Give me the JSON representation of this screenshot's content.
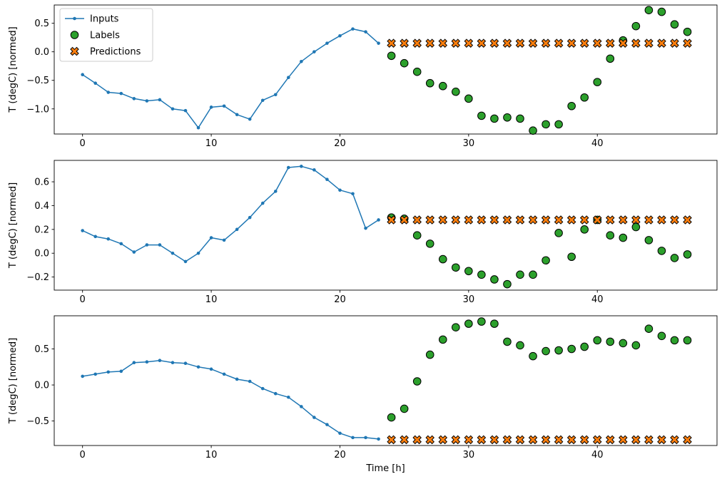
{
  "figure": {
    "xlabel": "Time [h]",
    "ylabel": "T (degC) [normed]"
  },
  "colors": {
    "inputs": "#1f77b4",
    "labels": "#2ca02c",
    "predictions": "#ff7f0e",
    "edge": "#000000",
    "spine": "#000000",
    "legend_border": "#cccccc",
    "background": "#ffffff"
  },
  "legend": {
    "entries": [
      {
        "label": "Inputs",
        "style": "line-dot",
        "color": "#1f77b4"
      },
      {
        "label": "Labels",
        "style": "circle",
        "color": "#2ca02c"
      },
      {
        "label": "Predictions",
        "style": "x",
        "color": "#ff7f0e"
      }
    ]
  },
  "chart_data": [
    {
      "type": "line",
      "title": "",
      "xlabel": "",
      "ylabel": "T (degC) [normed]",
      "xlim": [
        -2.2,
        49.3
      ],
      "ylim": [
        -1.44,
        0.82
      ],
      "xticks": [
        0,
        10,
        20,
        30,
        40
      ],
      "yticks": [
        -1.0,
        -0.5,
        0.0,
        0.5
      ],
      "grid": false,
      "legend_position": "upper-left",
      "series": [
        {
          "name": "Inputs",
          "style": "line-dot",
          "color": "#1f77b4",
          "x": [
            0,
            1,
            2,
            3,
            4,
            5,
            6,
            7,
            8,
            9,
            10,
            11,
            12,
            13,
            14,
            15,
            16,
            17,
            18,
            19,
            20,
            21,
            22,
            23
          ],
          "y": [
            -0.4,
            -0.55,
            -0.71,
            -0.73,
            -0.82,
            -0.86,
            -0.84,
            -1.0,
            -1.03,
            -1.33,
            -0.97,
            -0.95,
            -1.1,
            -1.18,
            -0.85,
            -0.75,
            -0.45,
            -0.17,
            0.0,
            0.15,
            0.28,
            0.4,
            0.35,
            0.15
          ]
        },
        {
          "name": "Labels",
          "style": "circle",
          "color": "#2ca02c",
          "x": [
            24,
            25,
            26,
            27,
            28,
            29,
            30,
            31,
            32,
            33,
            34,
            35,
            36,
            37,
            38,
            39,
            40,
            41,
            42,
            43,
            44,
            45,
            46,
            47
          ],
          "y": [
            -0.07,
            -0.2,
            -0.35,
            -0.55,
            -0.6,
            -0.7,
            -0.82,
            -1.12,
            -1.17,
            -1.15,
            -1.17,
            -1.38,
            -1.27,
            -1.27,
            -0.95,
            -0.8,
            -0.53,
            -0.12,
            0.2,
            0.45,
            0.73,
            0.7,
            0.48,
            0.35
          ]
        },
        {
          "name": "Predictions",
          "style": "x",
          "color": "#ff7f0e",
          "x": [
            24,
            25,
            26,
            27,
            28,
            29,
            30,
            31,
            32,
            33,
            34,
            35,
            36,
            37,
            38,
            39,
            40,
            41,
            42,
            43,
            44,
            45,
            46,
            47
          ],
          "y": [
            0.15,
            0.15,
            0.15,
            0.15,
            0.15,
            0.15,
            0.15,
            0.15,
            0.15,
            0.15,
            0.15,
            0.15,
            0.15,
            0.15,
            0.15,
            0.15,
            0.15,
            0.15,
            0.15,
            0.15,
            0.15,
            0.15,
            0.15,
            0.15
          ]
        }
      ]
    },
    {
      "type": "line",
      "title": "",
      "xlabel": "",
      "ylabel": "T (degC) [normed]",
      "xlim": [
        -2.2,
        49.3
      ],
      "ylim": [
        -0.31,
        0.78
      ],
      "xticks": [
        0,
        10,
        20,
        30,
        40
      ],
      "yticks": [
        -0.2,
        0.0,
        0.2,
        0.4,
        0.6
      ],
      "grid": false,
      "legend_position": "none",
      "series": [
        {
          "name": "Inputs",
          "style": "line-dot",
          "color": "#1f77b4",
          "x": [
            0,
            1,
            2,
            3,
            4,
            5,
            6,
            7,
            8,
            9,
            10,
            11,
            12,
            13,
            14,
            15,
            16,
            17,
            18,
            19,
            20,
            21,
            22,
            23
          ],
          "y": [
            0.19,
            0.14,
            0.12,
            0.08,
            0.01,
            0.07,
            0.07,
            0.0,
            -0.07,
            0.0,
            0.13,
            0.11,
            0.2,
            0.3,
            0.42,
            0.52,
            0.72,
            0.73,
            0.7,
            0.62,
            0.53,
            0.5,
            0.21,
            0.28
          ]
        },
        {
          "name": "Labels",
          "style": "circle",
          "color": "#2ca02c",
          "x": [
            24,
            25,
            26,
            27,
            28,
            29,
            30,
            31,
            32,
            33,
            34,
            35,
            36,
            37,
            38,
            39,
            40,
            41,
            42,
            43,
            44,
            45,
            46,
            47
          ],
          "y": [
            0.3,
            0.29,
            0.15,
            0.08,
            -0.05,
            -0.12,
            -0.15,
            -0.18,
            -0.22,
            -0.26,
            -0.18,
            -0.18,
            -0.06,
            0.17,
            -0.03,
            0.2,
            0.28,
            0.15,
            0.13,
            0.22,
            0.11,
            0.02,
            -0.04,
            -0.01
          ]
        },
        {
          "name": "Predictions",
          "style": "x",
          "color": "#ff7f0e",
          "x": [
            24,
            25,
            26,
            27,
            28,
            29,
            30,
            31,
            32,
            33,
            34,
            35,
            36,
            37,
            38,
            39,
            40,
            41,
            42,
            43,
            44,
            45,
            46,
            47
          ],
          "y": [
            0.28,
            0.28,
            0.28,
            0.28,
            0.28,
            0.28,
            0.28,
            0.28,
            0.28,
            0.28,
            0.28,
            0.28,
            0.28,
            0.28,
            0.28,
            0.28,
            0.28,
            0.28,
            0.28,
            0.28,
            0.28,
            0.28,
            0.28,
            0.28
          ]
        }
      ]
    },
    {
      "type": "line",
      "title": "",
      "xlabel": "Time [h]",
      "ylabel": "T (degC) [normed]",
      "xlim": [
        -2.2,
        49.3
      ],
      "ylim": [
        -0.84,
        0.96
      ],
      "xticks": [
        0,
        10,
        20,
        30,
        40
      ],
      "yticks": [
        -0.5,
        0.0,
        0.5
      ],
      "grid": false,
      "legend_position": "none",
      "series": [
        {
          "name": "Inputs",
          "style": "line-dot",
          "color": "#1f77b4",
          "x": [
            0,
            1,
            2,
            3,
            4,
            5,
            6,
            7,
            8,
            9,
            10,
            11,
            12,
            13,
            14,
            15,
            16,
            17,
            18,
            19,
            20,
            21,
            22,
            23
          ],
          "y": [
            0.12,
            0.15,
            0.18,
            0.19,
            0.31,
            0.32,
            0.34,
            0.31,
            0.3,
            0.25,
            0.22,
            0.15,
            0.08,
            0.05,
            -0.05,
            -0.12,
            -0.17,
            -0.3,
            -0.45,
            -0.55,
            -0.67,
            -0.73,
            -0.73,
            -0.75
          ]
        },
        {
          "name": "Labels",
          "style": "circle",
          "color": "#2ca02c",
          "x": [
            24,
            25,
            26,
            27,
            28,
            29,
            30,
            31,
            32,
            33,
            34,
            35,
            36,
            37,
            38,
            39,
            40,
            41,
            42,
            43,
            44,
            45,
            46,
            47
          ],
          "y": [
            -0.45,
            -0.33,
            0.05,
            0.42,
            0.63,
            0.8,
            0.85,
            0.88,
            0.85,
            0.6,
            0.55,
            0.4,
            0.47,
            0.48,
            0.5,
            0.53,
            0.62,
            0.6,
            0.58,
            0.55,
            0.78,
            0.68,
            0.62,
            0.62
          ]
        },
        {
          "name": "Predictions",
          "style": "x",
          "color": "#ff7f0e",
          "x": [
            24,
            25,
            26,
            27,
            28,
            29,
            30,
            31,
            32,
            33,
            34,
            35,
            36,
            37,
            38,
            39,
            40,
            41,
            42,
            43,
            44,
            45,
            46,
            47
          ],
          "y": [
            -0.76,
            -0.76,
            -0.76,
            -0.76,
            -0.76,
            -0.76,
            -0.76,
            -0.76,
            -0.76,
            -0.76,
            -0.76,
            -0.76,
            -0.76,
            -0.76,
            -0.76,
            -0.76,
            -0.76,
            -0.76,
            -0.76,
            -0.76,
            -0.76,
            -0.76,
            -0.76,
            -0.76
          ]
        }
      ]
    }
  ]
}
